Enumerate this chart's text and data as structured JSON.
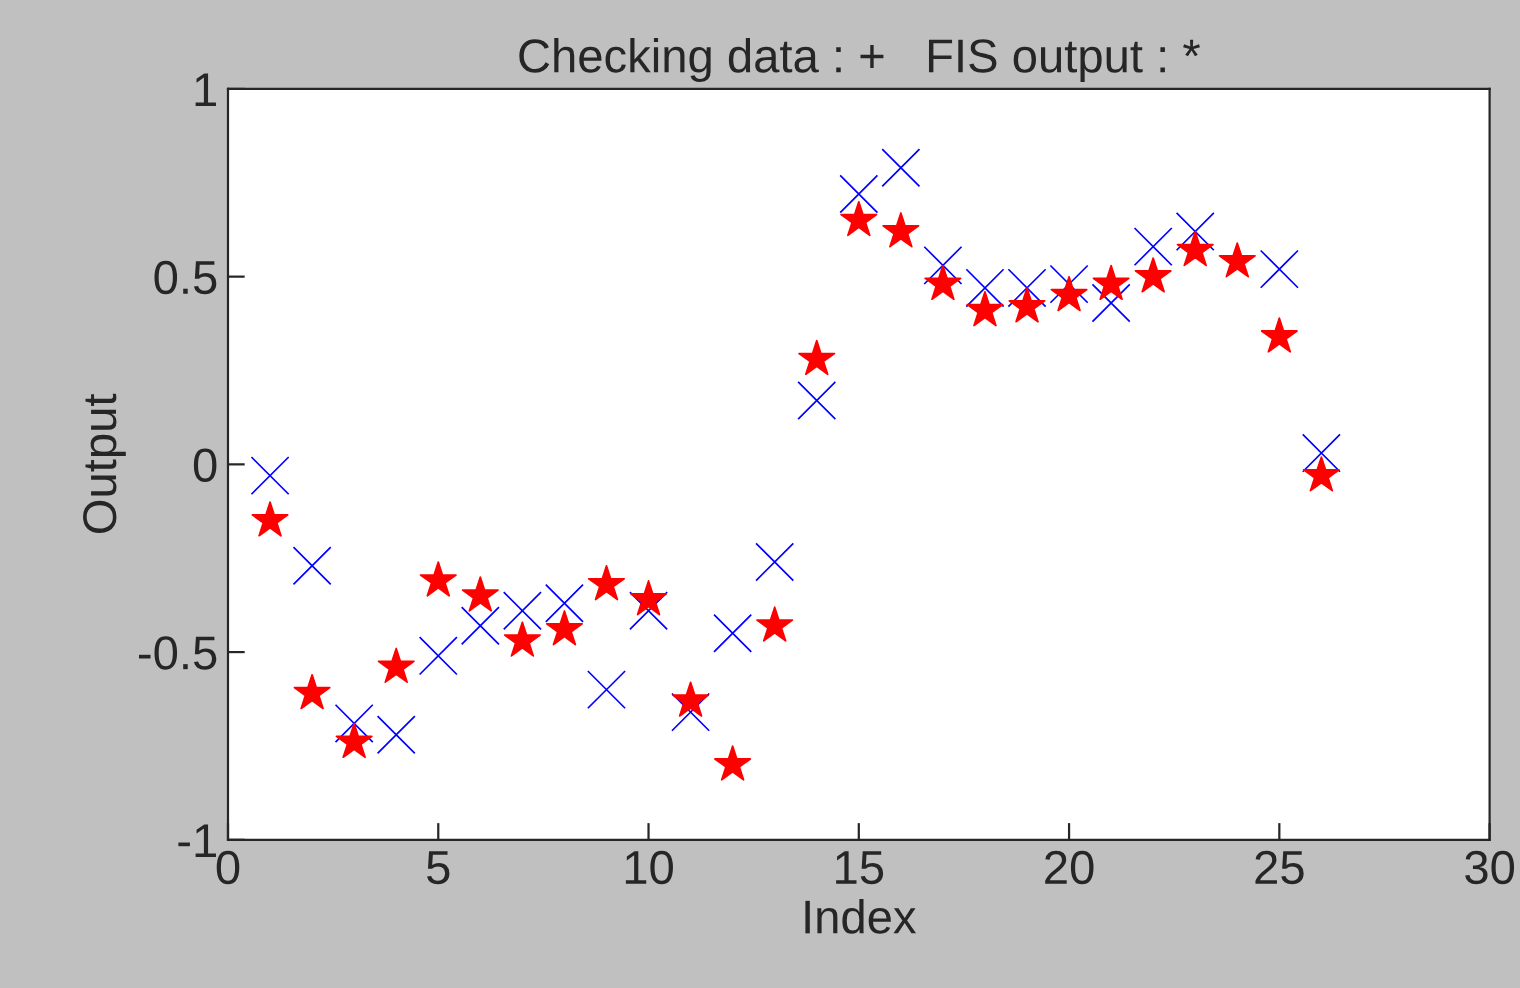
{
  "chart_data": {
    "type": "scatter",
    "title": "Checking data : +   FIS output : *",
    "xlabel": "Index",
    "ylabel": "Output",
    "x": [
      1,
      2,
      3,
      4,
      5,
      6,
      7,
      8,
      9,
      10,
      11,
      12,
      13,
      14,
      15,
      16,
      17,
      18,
      19,
      20,
      21,
      22,
      23,
      24,
      25,
      26
    ],
    "series": [
      {
        "color": "#0000ff",
        "marker": "cross",
        "values": [
          -0.03,
          -0.27,
          -0.69,
          -0.72,
          -0.51,
          -0.43,
          -0.39,
          -0.37,
          -0.6,
          -0.39,
          -0.66,
          -0.45,
          -0.26,
          0.17,
          0.72,
          0.79,
          0.53,
          0.47,
          0.47,
          0.48,
          0.43,
          0.58,
          0.62,
          null,
          0.52,
          0.03
        ]
      },
      {
        "color": "#ff0000",
        "marker": "star",
        "values": [
          -0.15,
          -0.61,
          -0.74,
          -0.54,
          -0.31,
          -0.35,
          -0.47,
          -0.44,
          -0.32,
          -0.36,
          -0.63,
          -0.8,
          -0.43,
          0.28,
          0.65,
          0.62,
          0.48,
          0.41,
          0.42,
          0.45,
          0.48,
          0.5,
          0.57,
          0.54,
          0.34,
          -0.03
        ]
      }
    ],
    "xlim": [
      0,
      30
    ],
    "xticks": [
      0,
      5,
      10,
      15,
      20,
      25,
      30
    ],
    "ylim": [
      -1,
      1
    ],
    "yticks": [
      -1,
      -0.5,
      0,
      0.5,
      1
    ],
    "grid": false,
    "legend": false
  }
}
